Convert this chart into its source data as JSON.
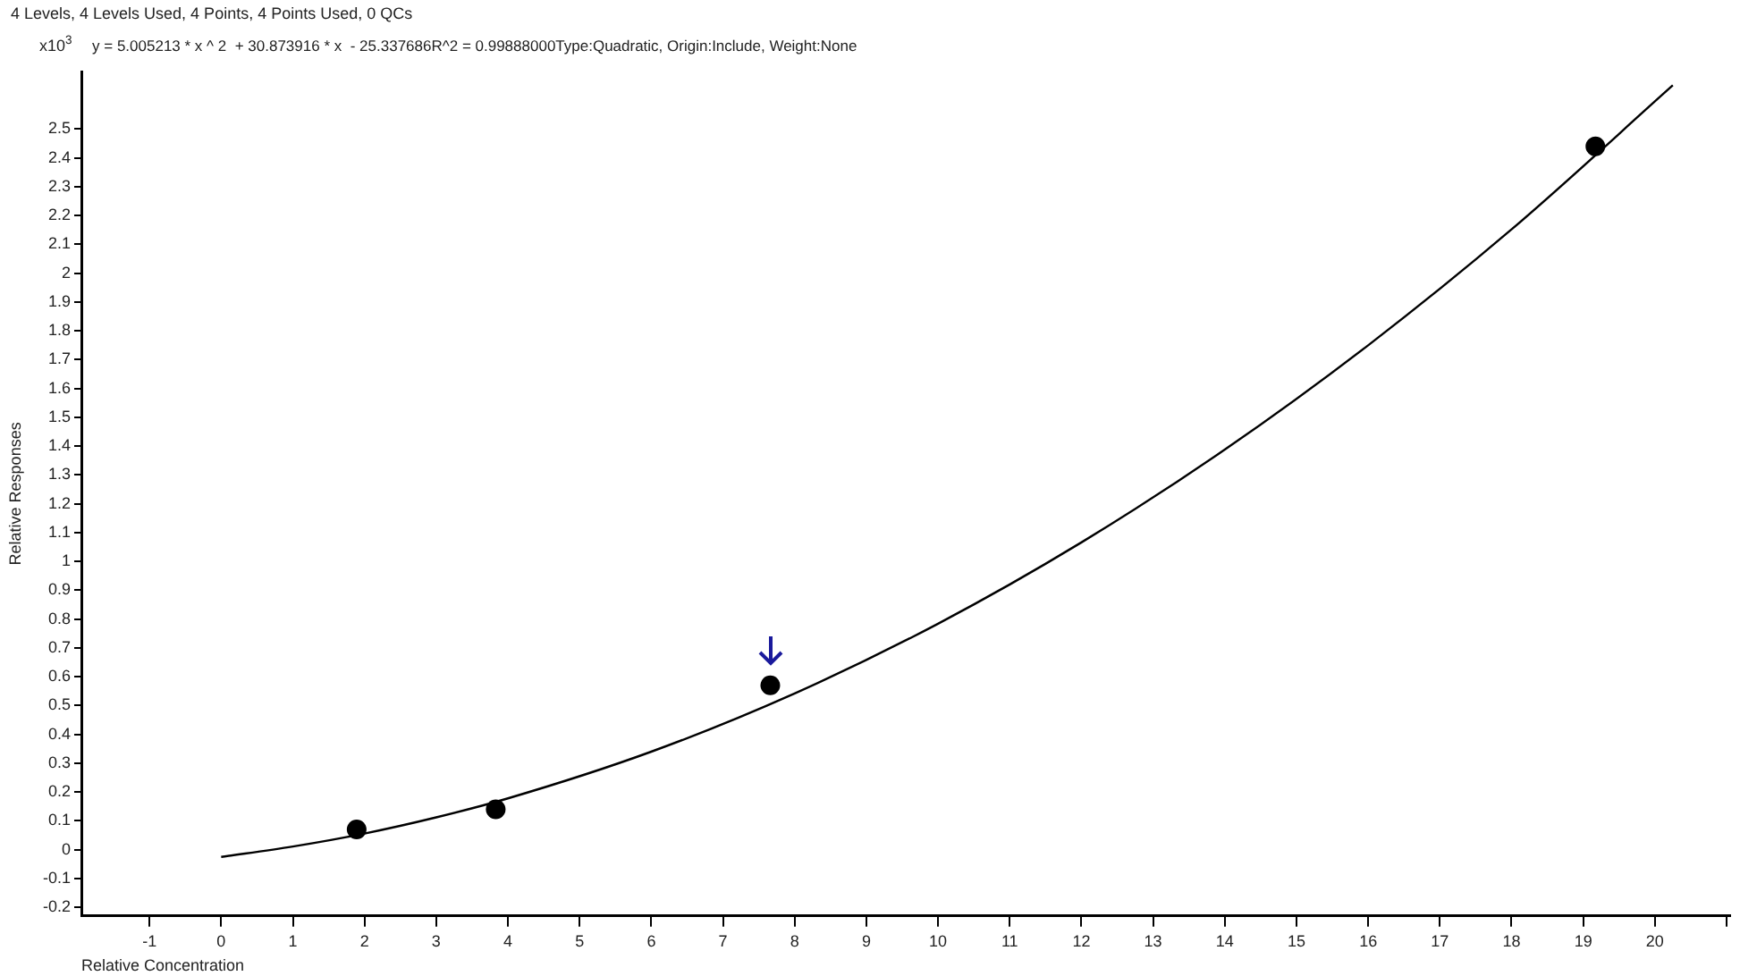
{
  "chart_data": {
    "type": "scatter",
    "title": "4 Levels, 4 Levels Used, 4 Points, 4 Points Used, 0 QCs",
    "xlabel": "Relative Concentration",
    "ylabel": "Relative Responses",
    "annotations": [
      "x10$^{3}$",
      "y = 5.005213 * x ^ 2  + 30.873916 * x  - 25.337686\u0000R^2 = 0.99888000\u0000Type:Quadratic, Origin:Include, Weight:None"
    ],
    "series": [
      {
        "type": "line",
        "color": "#000000",
        "marker": "none",
        "x": [
          0,
          1,
          2,
          3,
          4,
          6,
          8,
          10,
          12,
          14,
          16,
          18,
          20.25
        ],
        "values": [
          -0.025,
          0.011,
          0.056,
          0.112,
          0.178,
          0.34,
          0.542,
          0.784,
          1.066,
          1.388,
          1.75,
          2.152,
          2.652
        ]
      },
      {
        "type": "scatter",
        "color": "#000000",
        "marker": "circle",
        "x": [
          1.89,
          3.83,
          7.66,
          19.17
        ],
        "values": [
          0.07,
          0.14,
          0.57,
          2.44
        ]
      }
    ],
    "xlim": [
      -1.95,
      21.05
    ],
    "ylim": [
      -0.23,
      2.7
    ],
    "xticks": [
      -1,
      0,
      1,
      2,
      3,
      4,
      5,
      6,
      7,
      8,
      9,
      10,
      11,
      12,
      13,
      14,
      15,
      16,
      17,
      18,
      19,
      20,
      {
        "value": 21,
        "label": null
      }
    ],
    "yticks": [
      -0.2,
      -0.1,
      0,
      0.1,
      0.2,
      0.3,
      0.4,
      0.5,
      0.6,
      0.7,
      0.8,
      0.9,
      1,
      1.1,
      1.2,
      1.3,
      1.4,
      1.5,
      1.6,
      1.7,
      1.8,
      1.9,
      2,
      2.1,
      2.2,
      2.3,
      2.4,
      2.5
    ],
    "grid": false,
    "legend": false
  }
}
